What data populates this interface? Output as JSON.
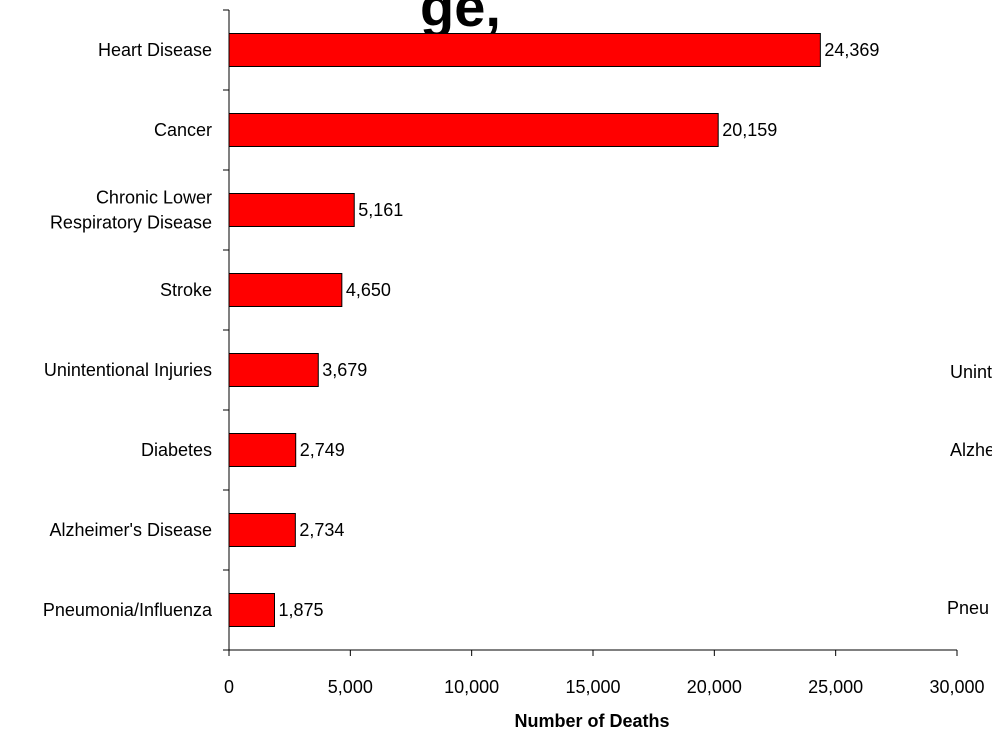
{
  "title_fragment": "ge, ",
  "right_fragments": [
    "Unint",
    "Alzhe",
    "Pneu"
  ],
  "chart_data": {
    "type": "bar",
    "orientation": "horizontal",
    "categories": [
      "Heart Disease",
      "Cancer",
      "Chronic Lower Respiratory Disease",
      "Stroke",
      "Unintentional Injuries",
      "Diabetes",
      "Alzheimer's Disease",
      "Pneumonia/Influenza"
    ],
    "category_lines": [
      [
        "Heart Disease"
      ],
      [
        "Cancer"
      ],
      [
        "Chronic Lower",
        "Respiratory Disease"
      ],
      [
        "Stroke"
      ],
      [
        "Unintentional Injuries"
      ],
      [
        "Diabetes"
      ],
      [
        "Alzheimer's Disease"
      ],
      [
        "Pneumonia/Influenza"
      ]
    ],
    "values": [
      24369,
      20159,
      5161,
      4650,
      3679,
      2749,
      2734,
      1875
    ],
    "value_labels": [
      "24,369",
      "20,159",
      "5,161",
      "4,650",
      "3,679",
      "2,749",
      "2,734",
      "1,875"
    ],
    "xlabel": "Number of Deaths",
    "ylabel": "",
    "xlim": [
      0,
      30000
    ],
    "xticks": [
      0,
      5000,
      10000,
      15000,
      20000,
      25000,
      30000
    ],
    "xtick_labels": [
      "0",
      "5,000",
      "10,000",
      "15,000",
      "20,000",
      "25,000",
      "30,000"
    ],
    "bar_color": "#ff0000",
    "bar_edge_color": "#000000",
    "grid": false,
    "legend": "none"
  }
}
